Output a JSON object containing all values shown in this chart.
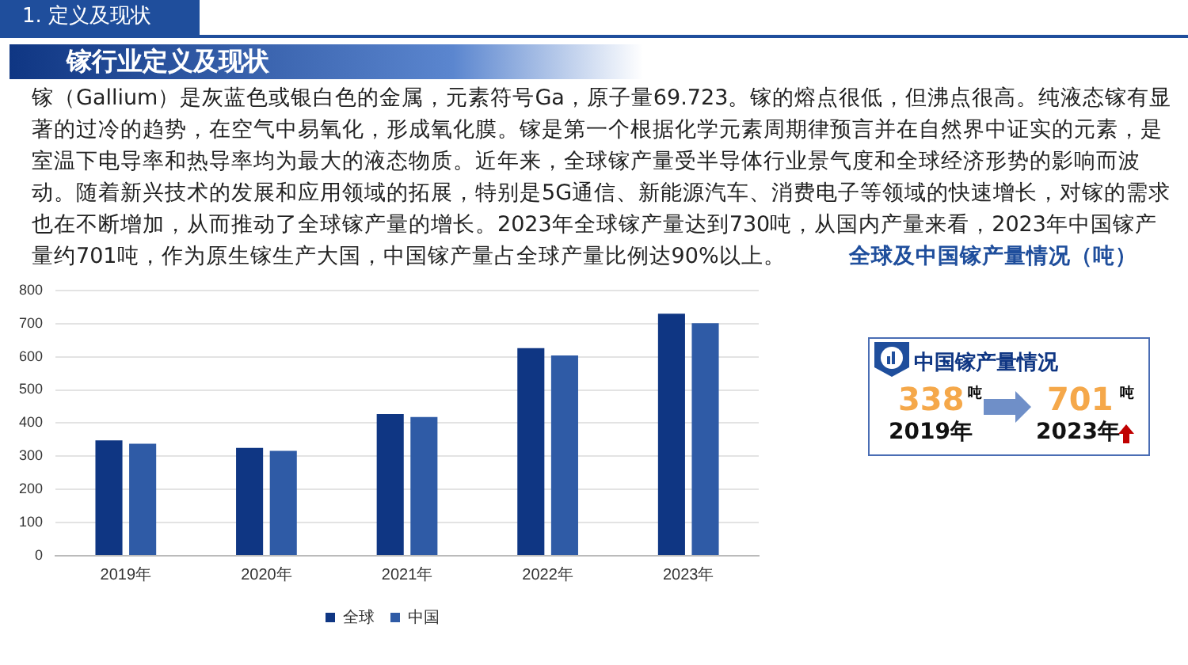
{
  "chart_data": {
    "type": "bar",
    "title": "全球及中国镓产量情况（吨）",
    "categories": [
      "2019年",
      "2020年",
      "2021年",
      "2022年",
      "2023年"
    ],
    "series": [
      {
        "name": "全球",
        "color": "#0f3683",
        "values": [
          348,
          325,
          427,
          626,
          730
        ]
      },
      {
        "name": "中国",
        "color": "#2f5ba6",
        "values": [
          338,
          316,
          418,
          604,
          701
        ]
      }
    ],
    "ylim": [
      0,
      800
    ],
    "yticks": [
      0,
      100,
      200,
      300,
      400,
      500,
      600,
      700,
      800
    ],
    "grid": "y",
    "legend": "bottom",
    "annotations": [
      "1. 定义及现状",
      "镓行业定义及现状",
      "镓（Gallium）是灰蓝色或银白色的金属，元素符号Ga，原子量69.723。镓的熔点很低，但沸点很高。纯液态镓有显著的过冷的趋势，在空气中易氧化，形成氧化膜。镓是第一个根据化学元素周期律预言并在自然界中证实的元素，是室温下电导率和热导率均为最大的液态物质。近年来，全球镓产量受半导体行业景气度和全球经济形势的影响而波动。随着新兴技术的发展和应用领域的拓展，特别是5G通信、新能源汽车、消费电子等领域的快速增长，对镓的需求也在不断增加，从而推动了全球镓产量的增长。2023年全球镓产量达到730吨，从国内产量来看，2023年中国镓产量约701吨，作为原生镓生产大国，中国镓产量占全球产量比例达90%以上。",
      "中国镓产量情况",
      "338",
      "吨",
      "2019年",
      "701",
      "吨",
      "2023年"
    ]
  }
}
